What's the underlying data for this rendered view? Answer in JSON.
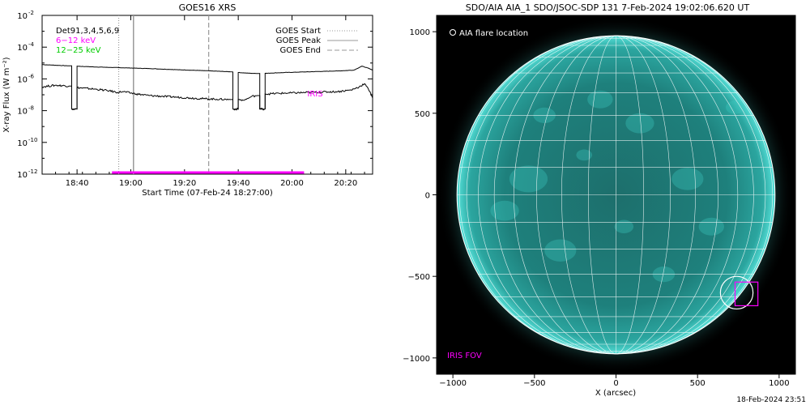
{
  "timestamp": "18-Feb-2024 23:51",
  "chart_data": [
    {
      "type": "line",
      "title": "GOES16 XRS",
      "xlabel": "Start Time (07-Feb-24 18:27:00)",
      "ylabel": "X-ray Flux (W m⁻²)",
      "x_unit": "minutes after 18:27:00",
      "xlim": [
        0,
        123
      ],
      "ylim_log10": [
        -12,
        -2
      ],
      "y_scale": "log",
      "x_ticks": [
        {
          "t": 13,
          "label": "18:40"
        },
        {
          "t": 33,
          "label": "19:00"
        },
        {
          "t": 53,
          "label": "19:20"
        },
        {
          "t": 73,
          "label": "19:40"
        },
        {
          "t": 93,
          "label": "20:00"
        },
        {
          "t": 113,
          "label": "20:20"
        }
      ],
      "y_ticks": [
        {
          "exp": -12,
          "base": "10",
          "sup": "-12"
        },
        {
          "exp": -10,
          "base": "10",
          "sup": "-10"
        },
        {
          "exp": -8,
          "base": "10",
          "sup": "-8"
        },
        {
          "exp": -6,
          "base": "10",
          "sup": "-6"
        },
        {
          "exp": -4,
          "base": "10",
          "sup": "-4"
        },
        {
          "exp": -2,
          "base": "10",
          "sup": "-2"
        }
      ],
      "legend_left": [
        {
          "label": "Det91,3,4,5,6,9",
          "color": "#000000"
        },
        {
          "label": "6−12 keV",
          "color": "#ff00ff"
        },
        {
          "label": "12−25 keV",
          "color": "#00cc00"
        }
      ],
      "legend_right": [
        {
          "label": "GOES Start",
          "style": "dotted",
          "color": "#999999"
        },
        {
          "label": "GOES Peak",
          "style": "solid",
          "color": "#999999"
        },
        {
          "label": "GOES End",
          "style": "dashed",
          "color": "#999999"
        }
      ],
      "markers": {
        "goes_start": 28.5,
        "goes_peak": 34,
        "goes_end": 62
      },
      "iris_label": "IRIS",
      "iris_range": [
        26,
        97.5
      ],
      "iris_level_log10": -12,
      "series": [
        {
          "color": "#000000",
          "points": [
            [
              0,
              -5.1
            ],
            [
              10,
              -5.18
            ],
            [
              11,
              -5.18
            ],
            [
              11,
              -7.9
            ],
            [
              13,
              -7.9
            ],
            [
              13,
              -5.2
            ],
            [
              20,
              -5.25
            ],
            [
              30,
              -5.3
            ],
            [
              40,
              -5.35
            ],
            [
              50,
              -5.42
            ],
            [
              60,
              -5.48
            ],
            [
              70,
              -5.55
            ],
            [
              71,
              -5.56
            ],
            [
              71,
              -7.9
            ],
            [
              73,
              -7.9
            ],
            [
              73,
              -5.6
            ],
            [
              78,
              -5.65
            ],
            [
              81,
              -5.66
            ],
            [
              81,
              -7.9
            ],
            [
              83,
              -7.9
            ],
            [
              83,
              -5.65
            ],
            [
              90,
              -5.6
            ],
            [
              100,
              -5.55
            ],
            [
              110,
              -5.5
            ],
            [
              116,
              -5.45
            ],
            [
              119,
              -5.2
            ],
            [
              121,
              -5.3
            ],
            [
              123,
              -5.45
            ]
          ]
        },
        {
          "color": "#000000",
          "points": [
            [
              0,
              -6.5
            ],
            [
              5,
              -6.4
            ],
            [
              10,
              -6.45
            ],
            [
              11,
              -6.45
            ],
            [
              11,
              -7.9
            ],
            [
              13,
              -7.9
            ],
            [
              13,
              -6.55
            ],
            [
              20,
              -6.65
            ],
            [
              25,
              -6.75
            ],
            [
              28,
              -6.85
            ],
            [
              30,
              -6.8
            ],
            [
              35,
              -6.95
            ],
            [
              40,
              -7.05
            ],
            [
              45,
              -7.1
            ],
            [
              50,
              -7.15
            ],
            [
              55,
              -7.2
            ],
            [
              60,
              -7.25
            ],
            [
              65,
              -7.28
            ],
            [
              70,
              -7.3
            ],
            [
              71,
              -7.3
            ],
            [
              71,
              -7.9
            ],
            [
              73,
              -7.9
            ],
            [
              73,
              -7.3
            ],
            [
              75,
              -7.35
            ],
            [
              77,
              -7.2
            ],
            [
              78,
              -7.1
            ],
            [
              80,
              -7.05
            ],
            [
              81,
              -7.05
            ],
            [
              81,
              -7.9
            ],
            [
              83,
              -7.9
            ],
            [
              83,
              -6.95
            ],
            [
              90,
              -6.9
            ],
            [
              100,
              -6.85
            ],
            [
              110,
              -6.8
            ],
            [
              115,
              -6.7
            ],
            [
              118,
              -6.5
            ],
            [
              120,
              -6.3
            ],
            [
              122,
              -6.8
            ],
            [
              123,
              -7.2
            ]
          ]
        }
      ]
    },
    {
      "type": "image",
      "title": "SDO/AIA AIA_1 SDO/JSOC-SDP 131  7-Feb-2024 19:02:06.620 UT",
      "xlabel": "X (arcsec)",
      "xlim": [
        -1100,
        1100
      ],
      "ylim": [
        -1100,
        1100
      ],
      "x_ticks": [
        -1000,
        -500,
        0,
        500,
        1000
      ],
      "y_ticks": [
        -1000,
        -500,
        0,
        500,
        1000
      ],
      "legend_text": "AIA flare location",
      "iris_fov_label": "IRIS FOV",
      "iris_fov_box": {
        "x": [
          730,
          870
        ],
        "y": [
          -680,
          -535
        ]
      },
      "flare_location": {
        "x": 740,
        "y": -600,
        "radius": 100
      },
      "disk_radius": 975,
      "colors": {
        "disk": "#1e8a86",
        "limb": "#4ed6cf",
        "grid": "#ffffff",
        "iris": "#ff00ff"
      }
    }
  ]
}
